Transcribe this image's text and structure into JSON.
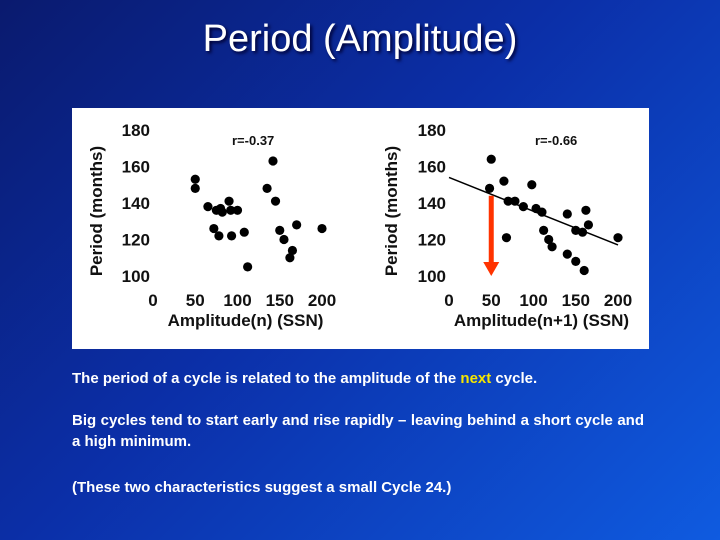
{
  "title": "Period (Amplitude)",
  "chart_data": [
    {
      "type": "scatter",
      "xlabel": "Amplitude(n) (SSN)",
      "ylabel": "Period (months)",
      "xlim": [
        0,
        200
      ],
      "ylim": [
        100,
        180
      ],
      "xticks": [
        "0",
        "50",
        "100",
        "150",
        "200"
      ],
      "yticks": [
        "100",
        "120",
        "140",
        "160",
        "180"
      ],
      "annotation": "r=-0.37",
      "points": [
        [
          50,
          153
        ],
        [
          50,
          148
        ],
        [
          65,
          138
        ],
        [
          75,
          136
        ],
        [
          80,
          137
        ],
        [
          82,
          135
        ],
        [
          90,
          141
        ],
        [
          92,
          136
        ],
        [
          100,
          136
        ],
        [
          72,
          126
        ],
        [
          78,
          122
        ],
        [
          93,
          122
        ],
        [
          108,
          124
        ],
        [
          112,
          105
        ],
        [
          135,
          148
        ],
        [
          142,
          163
        ],
        [
          145,
          141
        ],
        [
          150,
          125
        ],
        [
          155,
          120
        ],
        [
          162,
          110
        ],
        [
          165,
          114
        ],
        [
          170,
          128
        ],
        [
          200,
          126
        ]
      ],
      "marker_color": "#000000"
    },
    {
      "type": "scatter",
      "xlabel": "Amplitude(n+1) (SSN)",
      "ylabel": "Period (months)",
      "xlim": [
        0,
        200
      ],
      "ylim": [
        100,
        180
      ],
      "xticks": [
        "0",
        "50",
        "100",
        "150",
        "200"
      ],
      "yticks": [
        "100",
        "120",
        "140",
        "160",
        "180"
      ],
      "annotation": "r=-0.66",
      "points": [
        [
          50,
          164
        ],
        [
          48,
          148
        ],
        [
          65,
          152
        ],
        [
          70,
          141
        ],
        [
          78,
          141
        ],
        [
          88,
          138
        ],
        [
          98,
          150
        ],
        [
          103,
          137
        ],
        [
          110,
          135
        ],
        [
          112,
          125
        ],
        [
          118,
          120
        ],
        [
          122,
          116
        ],
        [
          140,
          134
        ],
        [
          150,
          125
        ],
        [
          158,
          124
        ],
        [
          162,
          136
        ],
        [
          165,
          128
        ],
        [
          68,
          121
        ],
        [
          140,
          112
        ],
        [
          150,
          108
        ],
        [
          160,
          103
        ],
        [
          200,
          121
        ]
      ],
      "fit_line": {
        "x": [
          0,
          200
        ],
        "y": [
          154,
          117
        ]
      },
      "arrow": {
        "x": 50,
        "y_from": 144,
        "y_to": 100,
        "color": "#ff3300"
      },
      "marker_color": "#000000"
    }
  ],
  "text": {
    "p1_before": "The period of a cycle is related to the amplitude of the ",
    "p1_highlight": "next",
    "p1_after": " cycle.",
    "p2": "Big cycles tend to start early and rise rapidly – leaving behind a short cycle and a high minimum.",
    "p3": "(These two characteristics suggest a small Cycle 24.)"
  },
  "colors": {
    "highlight": "#f5e600",
    "arrow": "#ff3300"
  }
}
